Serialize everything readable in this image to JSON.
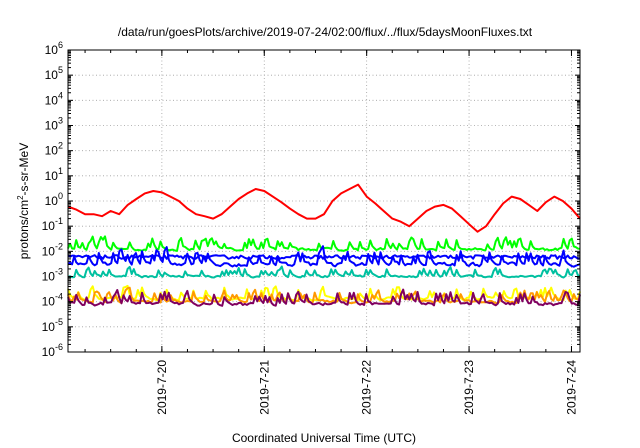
{
  "chart_data": {
    "type": "line",
    "title": "/data/run/goesPlots/archive/2019-07-24/02:00/flux/../flux/5daysMoonFluxes.txt",
    "xlabel": "Coordinated Universal Time (UTC)",
    "ylabel": {
      "prefix": "protons/cm",
      "superscript": "2",
      "suffix": "-s-sr-MeV"
    },
    "y_scale": "log",
    "ylim": [
      1e-06,
      1000000.0
    ],
    "y_ticks": [
      {
        "value": 1e-06,
        "base": "10",
        "exp": "-6"
      },
      {
        "value": 1e-05,
        "base": "10",
        "exp": "-5"
      },
      {
        "value": 0.0001,
        "base": "10",
        "exp": "-4"
      },
      {
        "value": 0.001,
        "base": "10",
        "exp": "-3"
      },
      {
        "value": 0.01,
        "base": "10",
        "exp": "-2"
      },
      {
        "value": 0.1,
        "base": "10",
        "exp": "-1"
      },
      {
        "value": 1.0,
        "base": "10",
        "exp": "0"
      },
      {
        "value": 10.0,
        "base": "10",
        "exp": "1"
      },
      {
        "value": 100.0,
        "base": "10",
        "exp": "2"
      },
      {
        "value": 1000.0,
        "base": "10",
        "exp": "3"
      },
      {
        "value": 10000.0,
        "base": "10",
        "exp": "4"
      },
      {
        "value": 100000.0,
        "base": "10",
        "exp": "5"
      },
      {
        "value": 1000000.0,
        "base": "10",
        "exp": "6"
      }
    ],
    "xlim": [
      "2019-07-19 02:00",
      "2019-07-24 02:00"
    ],
    "x_ticks": [
      {
        "value": "2019-07-20 00:00",
        "label": "2019-7-20"
      },
      {
        "value": "2019-07-21 00:00",
        "label": "2019-7-21"
      },
      {
        "value": "2019-07-22 00:00",
        "label": "2019-7-22"
      },
      {
        "value": "2019-07-23 00:00",
        "label": "2019-7-23"
      },
      {
        "value": "2019-07-24 00:00",
        "label": "2019-7-24"
      }
    ],
    "grid": true,
    "legend": "none",
    "series": [
      {
        "color": "#ff0000",
        "style": "smooth",
        "x": [
          "2019-07-19 02:00",
          "2019-07-19 04:00",
          "2019-07-19 06:00",
          "2019-07-19 08:00",
          "2019-07-19 10:00",
          "2019-07-19 12:00",
          "2019-07-19 14:00",
          "2019-07-19 16:00",
          "2019-07-19 18:00",
          "2019-07-19 20:00",
          "2019-07-19 22:00",
          "2019-07-20 00:00",
          "2019-07-20 02:00",
          "2019-07-20 04:00",
          "2019-07-20 06:00",
          "2019-07-20 08:00",
          "2019-07-20 10:00",
          "2019-07-20 12:00",
          "2019-07-20 14:00",
          "2019-07-20 16:00",
          "2019-07-20 18:00",
          "2019-07-20 20:00",
          "2019-07-20 22:00",
          "2019-07-21 00:00",
          "2019-07-21 02:00",
          "2019-07-21 04:00",
          "2019-07-21 06:00",
          "2019-07-21 08:00",
          "2019-07-21 10:00",
          "2019-07-21 12:00",
          "2019-07-21 14:00",
          "2019-07-21 16:00",
          "2019-07-21 18:00",
          "2019-07-21 20:00",
          "2019-07-21 22:00",
          "2019-07-22 00:00",
          "2019-07-22 02:00",
          "2019-07-22 04:00",
          "2019-07-22 06:00",
          "2019-07-22 08:00",
          "2019-07-22 10:00",
          "2019-07-22 12:00",
          "2019-07-22 14:00",
          "2019-07-22 16:00",
          "2019-07-22 18:00",
          "2019-07-22 20:00",
          "2019-07-22 22:00",
          "2019-07-23 00:00",
          "2019-07-23 02:00",
          "2019-07-23 04:00",
          "2019-07-23 06:00",
          "2019-07-23 08:00",
          "2019-07-23 10:00",
          "2019-07-23 12:00",
          "2019-07-23 14:00",
          "2019-07-23 16:00",
          "2019-07-23 18:00",
          "2019-07-23 20:00",
          "2019-07-23 22:00",
          "2019-07-24 00:00",
          "2019-07-24 02:00"
        ],
        "values": [
          0.6,
          0.45,
          0.3,
          0.3,
          0.25,
          0.4,
          0.3,
          0.7,
          1.2,
          2.0,
          2.5,
          2.2,
          1.5,
          1.0,
          0.5,
          0.3,
          0.25,
          0.2,
          0.3,
          0.6,
          1.2,
          2.0,
          3.0,
          2.5,
          1.5,
          0.9,
          0.5,
          0.3,
          0.2,
          0.2,
          0.3,
          1.0,
          2.0,
          3.0,
          4.5,
          1.5,
          0.8,
          0.4,
          0.2,
          0.15,
          0.1,
          0.2,
          0.4,
          0.6,
          0.7,
          0.5,
          0.25,
          0.12,
          0.06,
          0.1,
          0.3,
          0.8,
          1.5,
          1.2,
          0.7,
          0.4,
          0.9,
          1.5,
          1.0,
          0.5,
          0.2
        ]
      },
      {
        "color": "#00ff00",
        "style": "spiky",
        "base": 0.012,
        "peak": 0.05,
        "points": 250
      },
      {
        "color": "#0000ff",
        "style": "spiky",
        "base": 0.003,
        "peak": 0.02,
        "points": 250
      },
      {
        "color": "#0000ff",
        "style": "band",
        "base": 0.006,
        "jitter": 0.001,
        "points": 250
      },
      {
        "color": "#00c0a0",
        "style": "spiky",
        "base": 0.001,
        "peak": 0.003,
        "points": 250
      },
      {
        "color": "#ffff00",
        "style": "spiky",
        "base": 0.00013,
        "peak": 0.0006,
        "points": 250
      },
      {
        "color": "#ff9900",
        "style": "spiky",
        "base": 0.0001,
        "peak": 0.0004,
        "points": 250
      },
      {
        "color": "#800060",
        "style": "spiky",
        "base": 8e-05,
        "peak": 0.0004,
        "points": 250
      }
    ]
  }
}
